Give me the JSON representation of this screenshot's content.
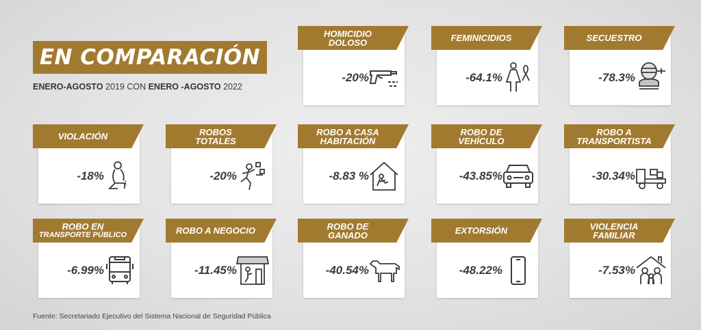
{
  "title": "EN COMPARACIÓN",
  "subtitle": {
    "part1": "ENERO-AGOSTO",
    "part2": " 2019 CON ",
    "part3": "ENERO -AGOSTO",
    "part4": " 2022"
  },
  "footer": "Fuente: Secretariado Ejecutivo del  Sistema Nacional de Seguridad Pública",
  "cards": [
    {
      "label1": "HOMICIDIO",
      "label2": "DOLOSO",
      "value": "-20%",
      "icon": "gun-icon"
    },
    {
      "label1": "FEMINICIDIOS",
      "label2": "",
      "value": "-64.1%",
      "icon": "woman-ribbon-icon"
    },
    {
      "label1": "SECUESTRO",
      "label2": "",
      "value": "-78.3%",
      "icon": "hostage-icon"
    },
    {
      "label1": "VIOLACIÓN",
      "label2": "",
      "value": "-18%",
      "icon": "kneeling-victim-icon"
    },
    {
      "label1": "ROBOS",
      "label2": "TOTALES",
      "value": "-20%",
      "icon": "running-thief-icon"
    },
    {
      "label1": "ROBO A CASA",
      "label2": "HABITACIÓN",
      "value": "-8.83 %",
      "icon": "house-burglar-icon"
    },
    {
      "label1": "ROBO DE",
      "label2": "VEHÍCULO",
      "value": "-43.85%",
      "icon": "car-icon"
    },
    {
      "label1": "ROBO A",
      "label2": "TRANSPORTISTA",
      "value": "-30.34%",
      "icon": "truck-icon"
    },
    {
      "label1": "ROBO EN",
      "label2": "TRANSPORTE PÚBLICO",
      "value": "-6.99%",
      "icon": "bus-icon"
    },
    {
      "label1": "ROBO A NEGOCIO",
      "label2": "",
      "value": "-11.45%",
      "icon": "store-icon"
    },
    {
      "label1": "ROBO DE",
      "label2": "GANADO",
      "value": "-40.54%",
      "icon": "cow-icon"
    },
    {
      "label1": "EXTORSIÓN",
      "label2": "",
      "value": "-48.22%",
      "icon": "smartphone-icon"
    },
    {
      "label1": "VIOLENCIA",
      "label2": "FAMILIAR",
      "value": "-7.53%",
      "icon": "family-house-icon"
    }
  ],
  "colors": {
    "accent": "#a27a2f",
    "icon_stroke": "#3a3a3a"
  }
}
